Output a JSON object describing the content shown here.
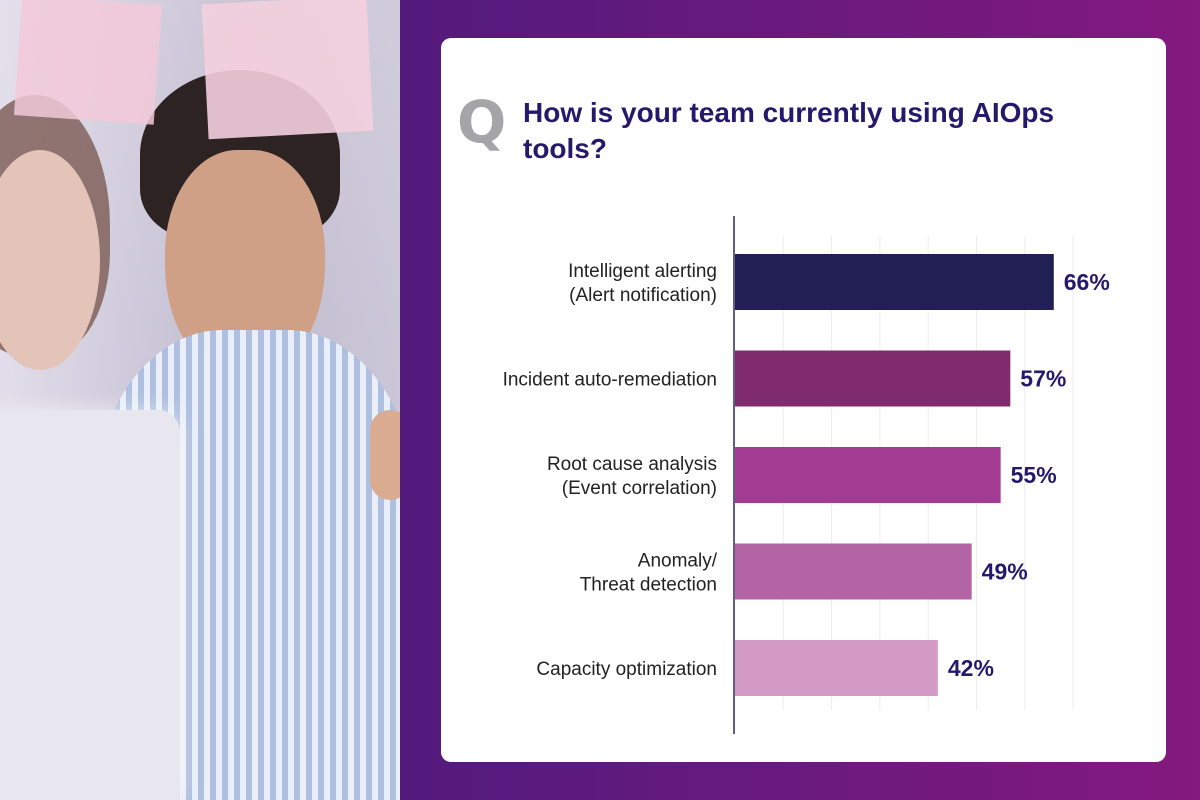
{
  "question": {
    "letter": "Q",
    "title": "How is your team currently using AIOps tools?"
  },
  "chart_data": {
    "type": "bar",
    "orientation": "horizontal",
    "title": "How is your team currently using AIOps tools?",
    "categories": [
      [
        "Intelligent alerting",
        "(Alert notification)"
      ],
      [
        "Incident auto-remediation"
      ],
      [
        "Root cause analysis",
        "(Event correlation)"
      ],
      [
        "Anomaly/",
        "Threat detection"
      ],
      [
        "Capacity optimization"
      ]
    ],
    "values": [
      66,
      57,
      55,
      49,
      42
    ],
    "value_labels": [
      "66%",
      "57%",
      "55%",
      "49%",
      "42%"
    ],
    "colors": [
      "#221f54",
      "#7f2b6e",
      "#a33b92",
      "#b364a4",
      "#d39ac6"
    ],
    "xlim": [
      0,
      70
    ],
    "grid": true,
    "legend": "none"
  }
}
